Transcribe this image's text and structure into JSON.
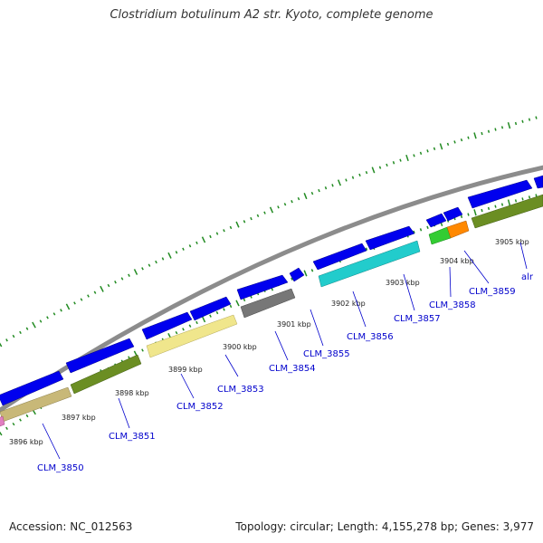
{
  "title": "Clostridium botulinum A2 str. Kyoto, complete genome",
  "footer": {
    "accession": "Accession: NC_012563",
    "stats": "Topology: circular; Length: 4,155,278 bp; Genes: 3,977"
  },
  "colors": {
    "backbone": "#8c8c8c",
    "gene_forward": "#0000ee",
    "olive": "#6b8e23",
    "khaki": "#c8b878",
    "pale_yellow": "#f0e68c",
    "gray": "#777777",
    "cyan": "#22cccc",
    "green": "#33cc33",
    "orange": "#ff8800",
    "label": "#0000cc",
    "tick": "#228b22"
  },
  "kbp_ticks": [
    "3896 kbp",
    "3897 kbp",
    "3898 kbp",
    "3899 kbp",
    "3900 kbp",
    "3901 kbp",
    "3902 kbp",
    "3903 kbp",
    "3904 kbp",
    "3905 kbp"
  ],
  "gene_labels": [
    "CLM_3850",
    "CLM_3851",
    "CLM_3852",
    "CLM_3853",
    "CLM_3854",
    "CLM_3855",
    "CLM_3856",
    "CLM_3857",
    "CLM_3858",
    "CLM_3859",
    "alr"
  ]
}
